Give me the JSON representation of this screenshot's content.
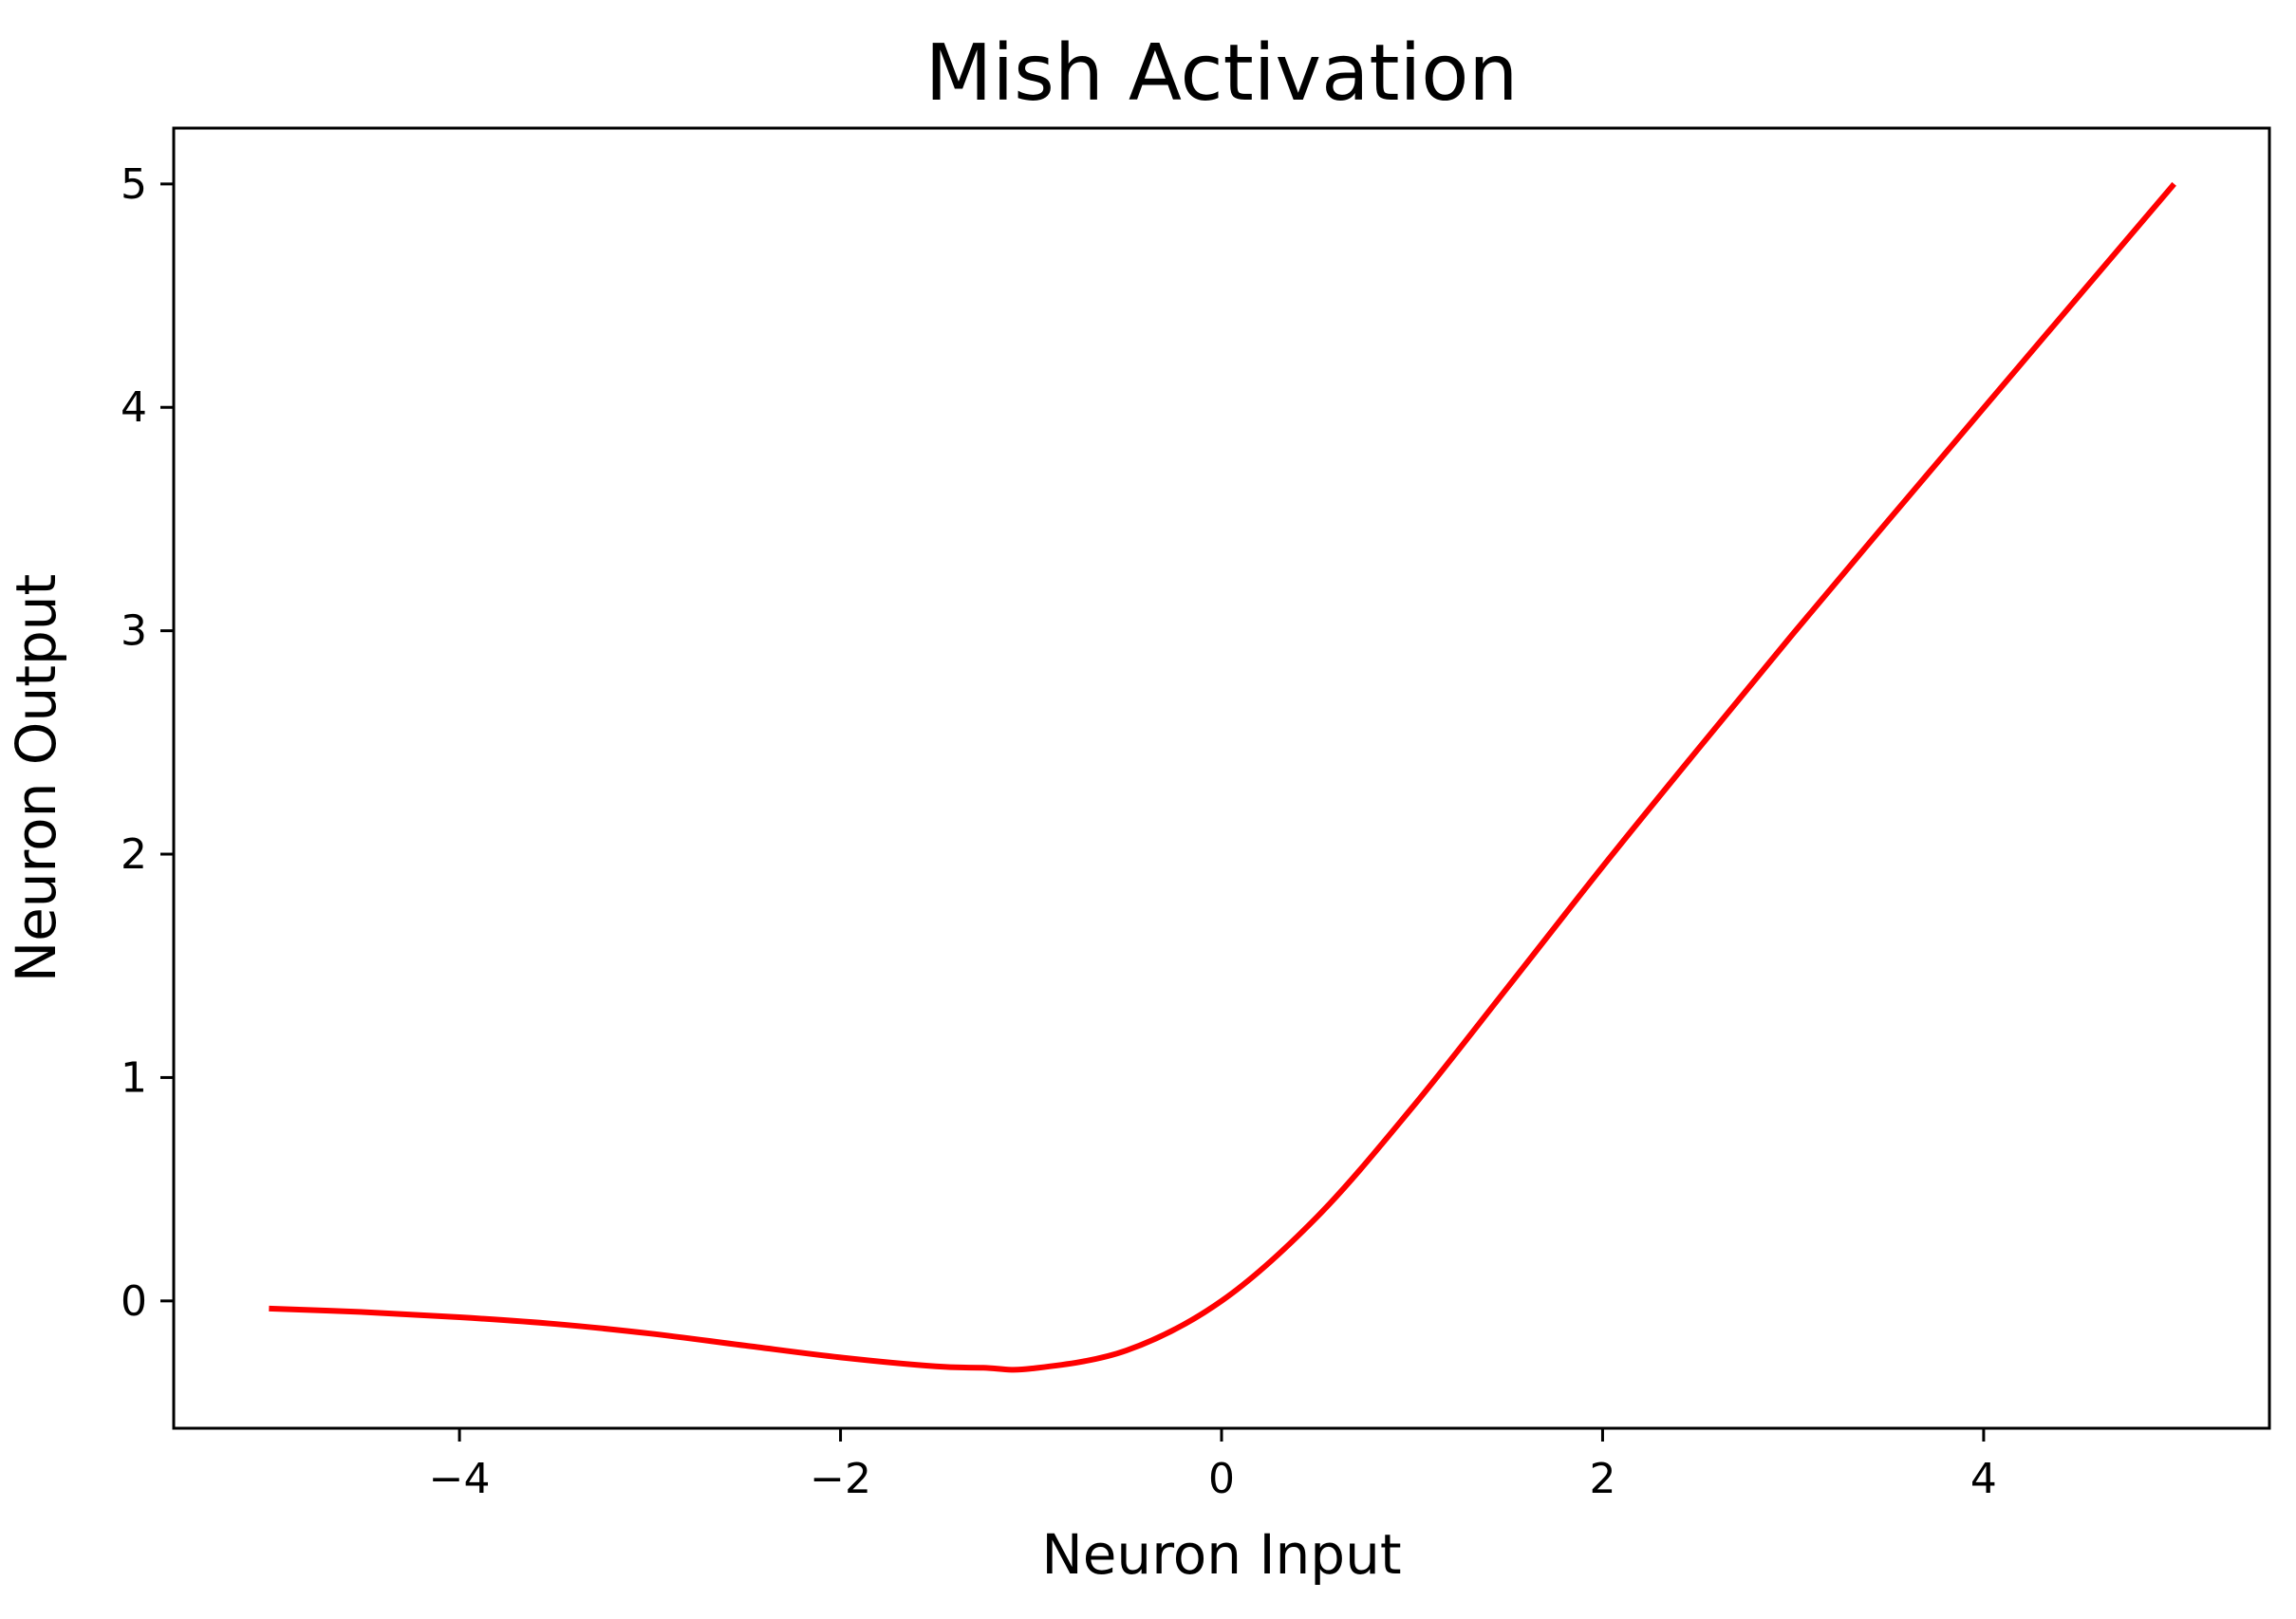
{
  "chart_data": {
    "type": "line",
    "title": "Mish Activation",
    "xlabel": "Neuron Input",
    "ylabel": "Neuron Output",
    "xlim": [
      -5.5,
      5.5
    ],
    "ylim": [
      -0.57,
      5.25
    ],
    "x_ticks": [
      -4,
      -2,
      0,
      2,
      4
    ],
    "x_tick_labels": [
      "−4",
      "−2",
      "0",
      "2",
      "4"
    ],
    "y_ticks": [
      0,
      1,
      2,
      3,
      4,
      5
    ],
    "y_tick_labels": [
      "0",
      "1",
      "2",
      "3",
      "4",
      "5"
    ],
    "grid": false,
    "series": [
      {
        "color": "#ff0000",
        "x": [
          -5.0,
          -4.5,
          -4.0,
          -3.5,
          -3.0,
          -2.5,
          -2.0,
          -1.5,
          -1.25,
          -1.0,
          -0.5,
          0.0,
          0.5,
          1.0,
          1.5,
          2.0,
          2.5,
          3.0,
          3.5,
          4.0,
          4.5,
          5.0
        ],
        "y": [
          -0.034,
          -0.05,
          -0.073,
          -0.103,
          -0.146,
          -0.2,
          -0.253,
          -0.293,
          -0.299,
          -0.303,
          -0.222,
          0.0,
          0.375,
          0.865,
          1.402,
          1.944,
          2.469,
          2.987,
          3.494,
          3.997,
          4.499,
          5.0
        ]
      }
    ]
  }
}
